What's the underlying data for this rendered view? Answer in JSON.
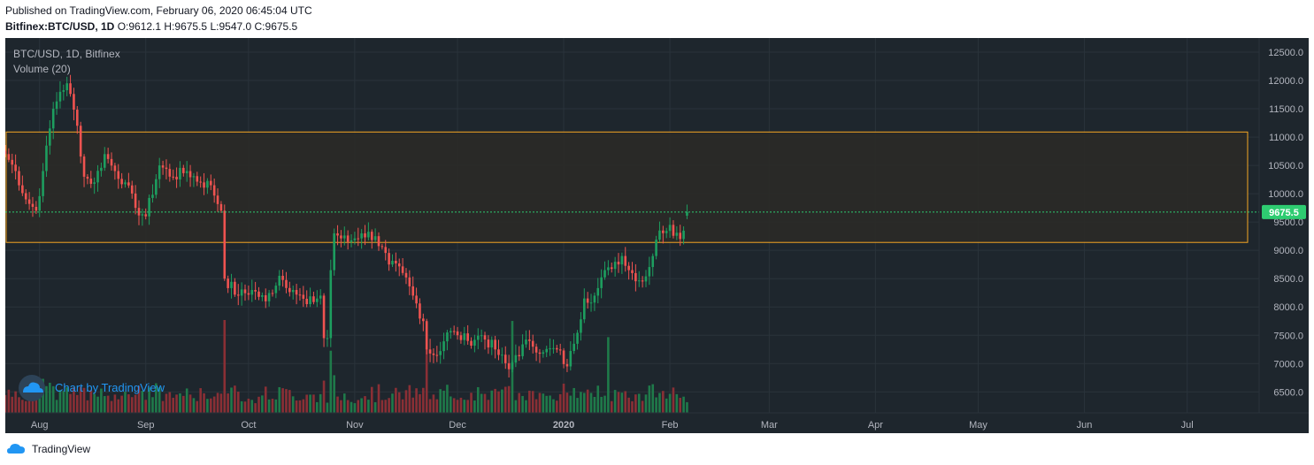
{
  "header": {
    "published": "Published on TradingView.com, February 06, 2020 06:45:04 UTC",
    "symbol": "Bitfinex:BTC/USD, 1D",
    "o_label": "O:",
    "o_value": "9612.1",
    "h_label": "H:",
    "h_value": "9675.5",
    "l_label": "L:",
    "l_value": "9547.0",
    "c_label": "C:",
    "c_value": "9675.5"
  },
  "legend": {
    "series_title": "BTC/USD, 1D, Bitfinex",
    "volume_title": "Volume (20)"
  },
  "watermark": {
    "text": "Chart by TradingView"
  },
  "footer": {
    "brand": "TradingView"
  },
  "colors": {
    "background": "#1e262d",
    "grid": "#2a333b",
    "up": "#26a69a",
    "up_body": "#1d9e5f",
    "down": "#ef5350",
    "volume_up": "#1f7a4a",
    "volume_down": "#8a2f35",
    "zone_border": "#f5a623",
    "zone_fill": "#2a2a27",
    "last_price": "#2ecc71",
    "axis_text": "#b2b5be"
  },
  "chart_data": {
    "type": "candlestick",
    "title": "BTC/USD, 1D, Bitfinex",
    "indicator": "Volume (20)",
    "y_ticks": [
      6500.0,
      7000.0,
      7500.0,
      8000.0,
      8500.0,
      9000.0,
      9500.0,
      10000.0,
      10500.0,
      11000.0,
      11500.0,
      12000.0,
      12500.0
    ],
    "y_range": [
      6130,
      12750
    ],
    "x_range": [
      "2019-07-22",
      "2020-07-22"
    ],
    "x_tick_labels": [
      {
        "date": "2019-08-01",
        "label": "Aug"
      },
      {
        "date": "2019-09-01",
        "label": "Sep"
      },
      {
        "date": "2019-10-01",
        "label": "Oct"
      },
      {
        "date": "2019-11-01",
        "label": "Nov"
      },
      {
        "date": "2019-12-01",
        "label": "Dec"
      },
      {
        "date": "2020-01-01",
        "label": "2020"
      },
      {
        "date": "2020-02-01",
        "label": "Feb"
      },
      {
        "date": "2020-03-01",
        "label": "Mar"
      },
      {
        "date": "2020-04-01",
        "label": "Apr"
      },
      {
        "date": "2020-05-01",
        "label": "May"
      },
      {
        "date": "2020-06-01",
        "label": "Jun"
      },
      {
        "date": "2020-07-01",
        "label": "Jul"
      }
    ],
    "resistance_zone": {
      "from_date": "2019-07-22",
      "to_date": "2020-07-30",
      "low": 9140,
      "high": 11090
    },
    "last_price": 9675.5,
    "close_anchors": [
      [
        "2019-07-22",
        10700
      ],
      [
        "2019-07-25",
        10400
      ],
      [
        "2019-07-28",
        9900
      ],
      [
        "2019-07-31",
        9700
      ],
      [
        "2019-08-02",
        10400
      ],
      [
        "2019-08-05",
        11500
      ],
      [
        "2019-08-07",
        11800
      ],
      [
        "2019-08-09",
        11950
      ],
      [
        "2019-08-12",
        11200
      ],
      [
        "2019-08-14",
        10300
      ],
      [
        "2019-08-17",
        10200
      ],
      [
        "2019-08-20",
        10700
      ],
      [
        "2019-08-23",
        10400
      ],
      [
        "2019-08-26",
        10200
      ],
      [
        "2019-08-29",
        9750
      ],
      [
        "2019-09-01",
        9600
      ],
      [
        "2019-09-05",
        10500
      ],
      [
        "2019-09-09",
        10300
      ],
      [
        "2019-09-13",
        10400
      ],
      [
        "2019-09-17",
        10200
      ],
      [
        "2019-09-20",
        10150
      ],
      [
        "2019-09-23",
        9700
      ],
      [
        "2019-09-24",
        8500
      ],
      [
        "2019-09-28",
        8200
      ],
      [
        "2019-10-02",
        8300
      ],
      [
        "2019-10-06",
        8100
      ],
      [
        "2019-10-10",
        8550
      ],
      [
        "2019-10-14",
        8300
      ],
      [
        "2019-10-18",
        8050
      ],
      [
        "2019-10-22",
        8200
      ],
      [
        "2019-10-23",
        7450
      ],
      [
        "2019-10-24",
        7450
      ],
      [
        "2019-10-25",
        8650
      ],
      [
        "2019-10-26",
        9300
      ],
      [
        "2019-10-30",
        9150
      ],
      [
        "2019-11-03",
        9300
      ],
      [
        "2019-11-07",
        9250
      ],
      [
        "2019-11-11",
        8750
      ],
      [
        "2019-11-15",
        8600
      ],
      [
        "2019-11-18",
        8200
      ],
      [
        "2019-11-21",
        7750
      ],
      [
        "2019-11-22",
        7250
      ],
      [
        "2019-11-25",
        7150
      ],
      [
        "2019-11-28",
        7550
      ],
      [
        "2019-12-01",
        7500
      ],
      [
        "2019-12-04",
        7400
      ],
      [
        "2019-12-08",
        7500
      ],
      [
        "2019-12-12",
        7250
      ],
      [
        "2019-12-16",
        6900
      ],
      [
        "2019-12-18",
        7150
      ],
      [
        "2019-12-22",
        7400
      ],
      [
        "2019-12-26",
        7200
      ],
      [
        "2019-12-30",
        7250
      ],
      [
        "2020-01-02",
        6950
      ],
      [
        "2020-01-04",
        7350
      ],
      [
        "2020-01-07",
        8150
      ],
      [
        "2020-01-10",
        8200
      ],
      [
        "2020-01-14",
        8700
      ],
      [
        "2020-01-18",
        8900
      ],
      [
        "2020-01-20",
        8650
      ],
      [
        "2020-01-24",
        8450
      ],
      [
        "2020-01-27",
        8900
      ],
      [
        "2020-01-29",
        9350
      ],
      [
        "2020-02-01",
        9450
      ],
      [
        "2020-02-04",
        9200
      ],
      [
        "2020-02-06",
        9675.5
      ]
    ],
    "volume_note": "relative daily volume bars, up days green, down days red; spikes on 2019-09-24, 2019-10-25, 2019-11-22, 2019-12-17, 2020-01-14"
  }
}
